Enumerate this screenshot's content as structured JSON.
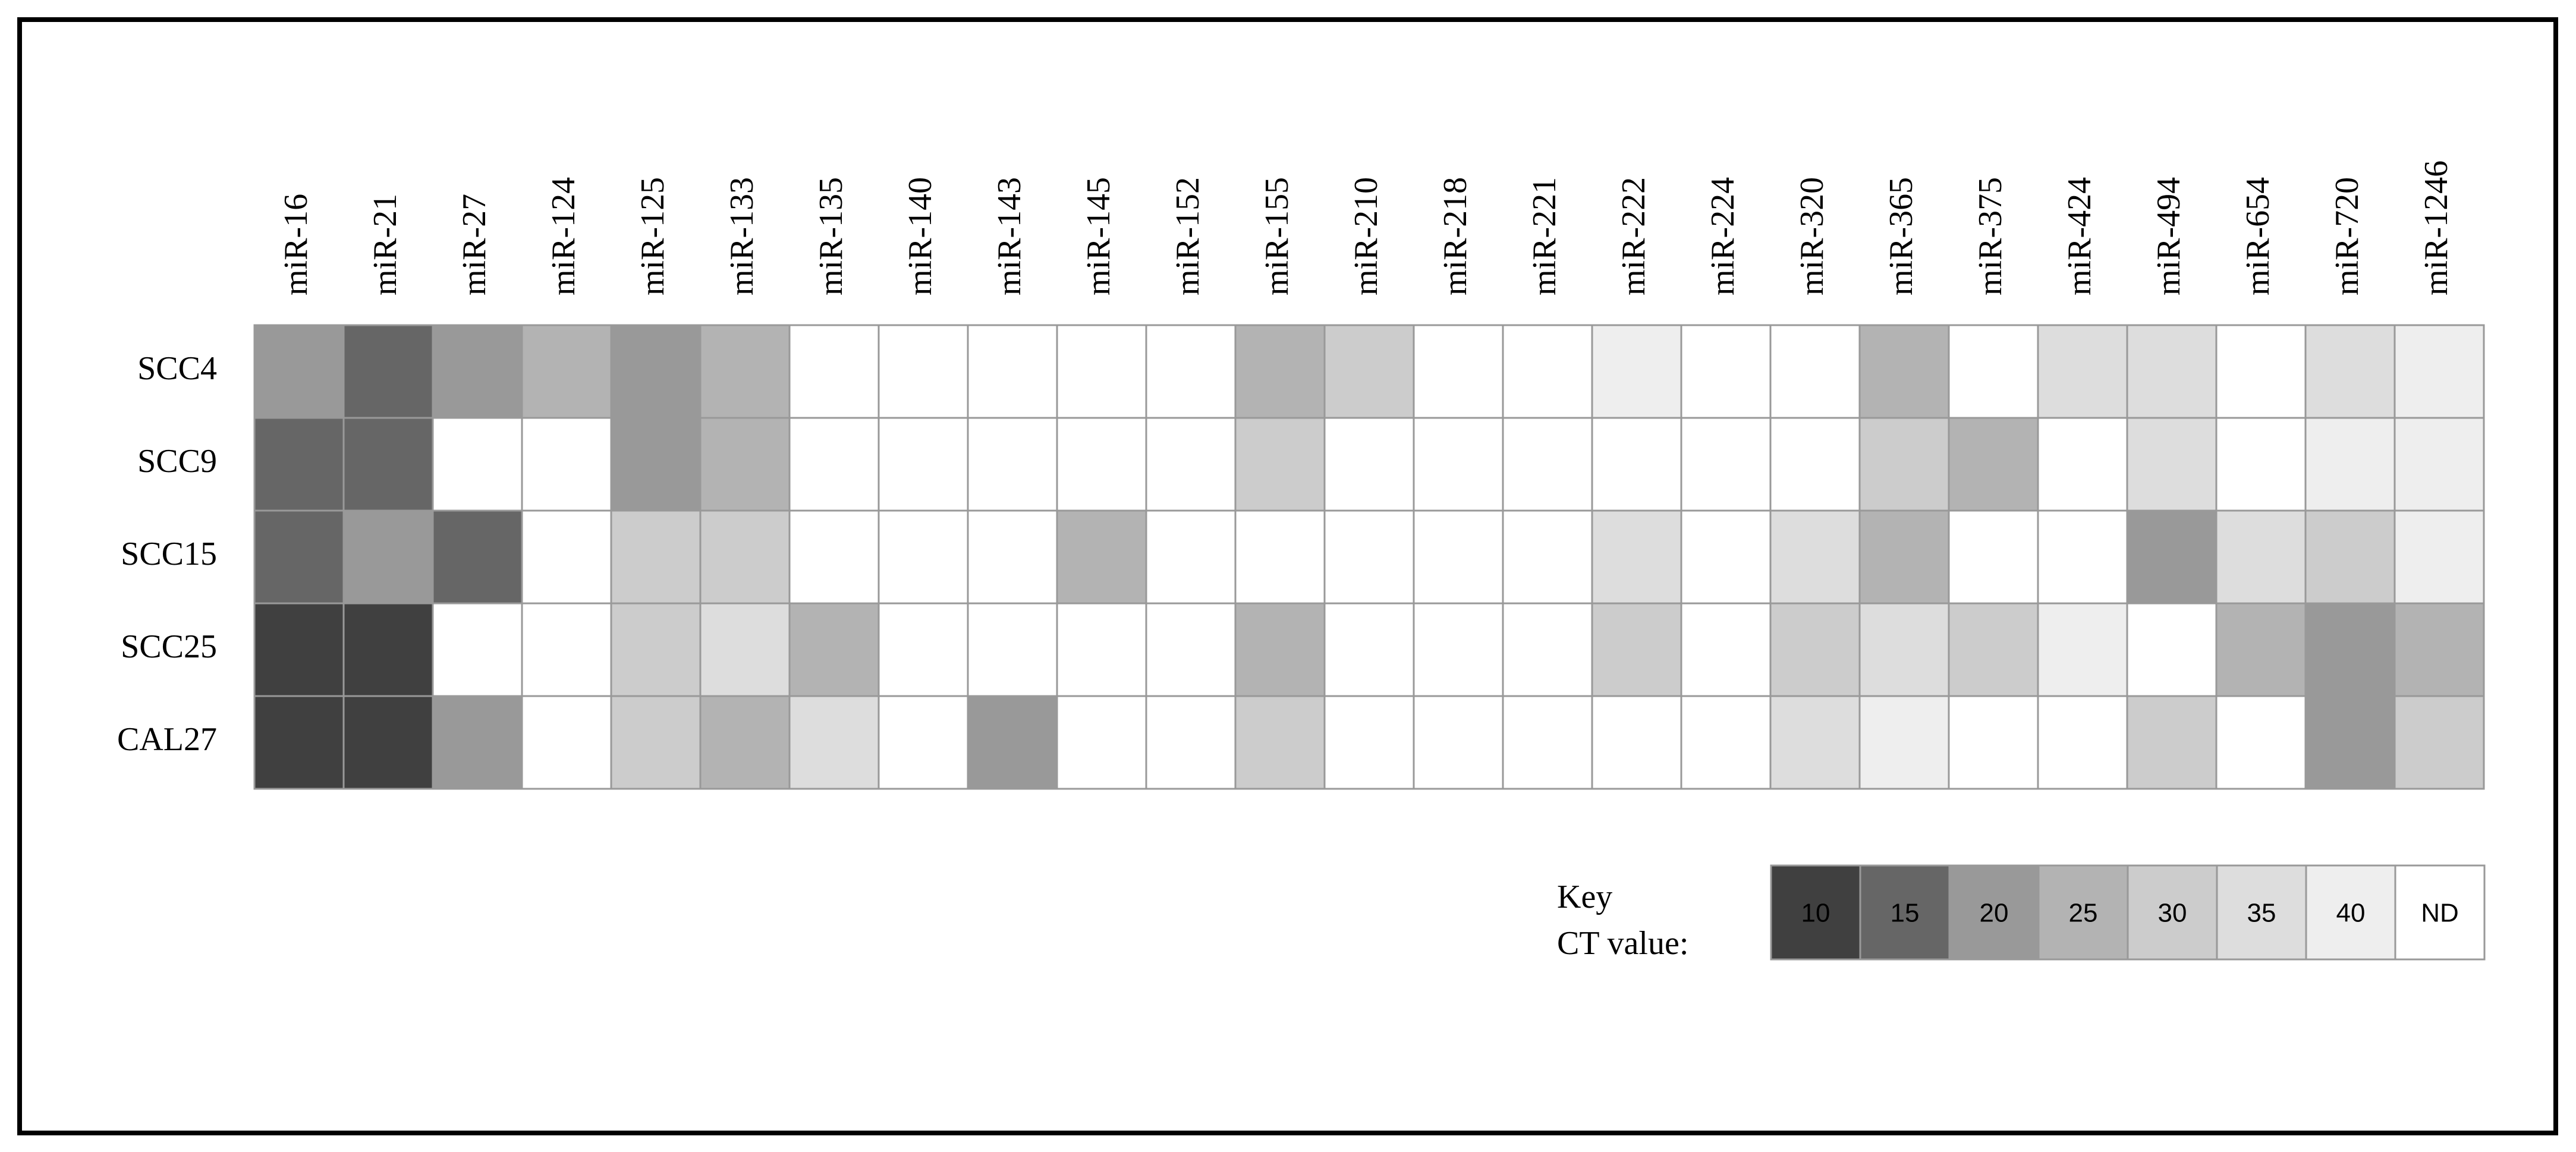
{
  "chart_data": {
    "type": "heatmap",
    "categories": [
      "miR-16",
      "miR-21",
      "miR-27",
      "miR-124",
      "miR-125",
      "miR-133",
      "miR-135",
      "miR-140",
      "miR-143",
      "miR-145",
      "miR-152",
      "miR-155",
      "miR-210",
      "miR-218",
      "miR-221",
      "miR-222",
      "miR-224",
      "miR-320",
      "miR-365",
      "miR-375",
      "miR-424",
      "miR-494",
      "miR-654",
      "miR-720",
      "miR-1246"
    ],
    "rows": [
      "SCC4",
      "SCC9",
      "SCC15",
      "SCC25",
      "CAL27"
    ],
    "values": [
      [
        20,
        15,
        20,
        25,
        20,
        25,
        null,
        null,
        null,
        null,
        null,
        25,
        30,
        null,
        null,
        40,
        null,
        null,
        25,
        null,
        35,
        35,
        null,
        35,
        40
      ],
      [
        15,
        15,
        null,
        null,
        20,
        25,
        null,
        null,
        null,
        null,
        null,
        30,
        null,
        null,
        null,
        null,
        null,
        null,
        30,
        25,
        null,
        35,
        null,
        40,
        40
      ],
      [
        15,
        20,
        15,
        null,
        30,
        30,
        null,
        null,
        null,
        25,
        null,
        null,
        null,
        null,
        null,
        35,
        null,
        35,
        25,
        null,
        null,
        20,
        35,
        30,
        40
      ],
      [
        10,
        10,
        null,
        null,
        30,
        35,
        25,
        null,
        null,
        null,
        null,
        25,
        null,
        null,
        null,
        30,
        null,
        30,
        35,
        30,
        40,
        null,
        25,
        20,
        25
      ],
      [
        10,
        10,
        20,
        null,
        30,
        25,
        35,
        null,
        20,
        null,
        null,
        30,
        null,
        null,
        null,
        null,
        null,
        35,
        40,
        null,
        null,
        30,
        null,
        20,
        30
      ]
    ],
    "key_title": [
      "Key",
      "CT value:"
    ],
    "key_levels": [
      10,
      15,
      20,
      25,
      30,
      35,
      40
    ],
    "key_colors": [
      "#404040",
      "#666666",
      "#999999",
      "#b3b3b3",
      "#cccccc",
      "#dddddd",
      "#eeeeee"
    ],
    "nd_label": "ND",
    "nd_color": "#ffffff"
  }
}
